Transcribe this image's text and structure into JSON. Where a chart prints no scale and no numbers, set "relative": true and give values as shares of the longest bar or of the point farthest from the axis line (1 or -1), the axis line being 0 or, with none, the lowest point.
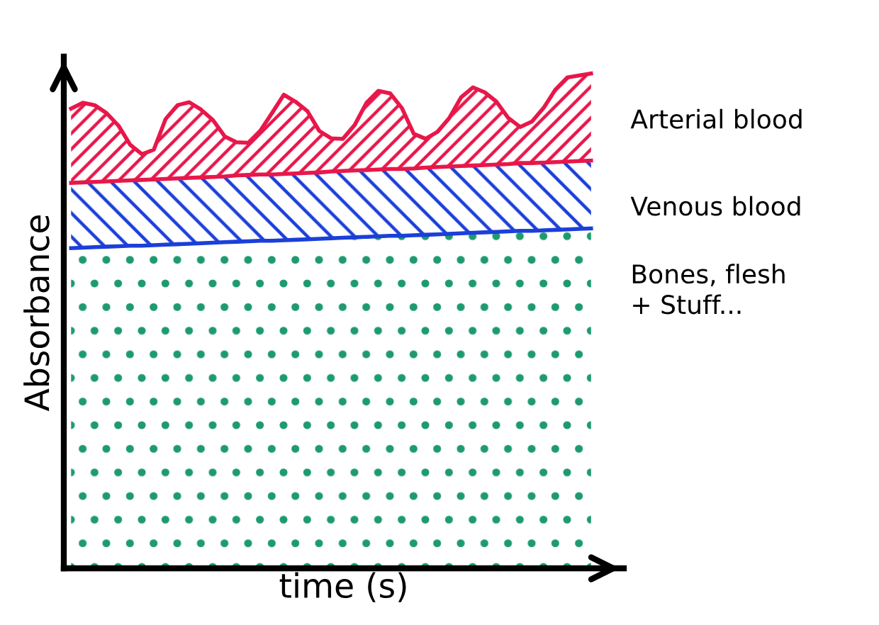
{
  "chart_data": {
    "type": "area",
    "stacked": true,
    "relative": true,
    "xlabel": "time (s)",
    "ylabel": "Absorbance",
    "categories": [
      null,
      null,
      null,
      null,
      null,
      null,
      null,
      null,
      null,
      null,
      null,
      null,
      null,
      null,
      null,
      null,
      null,
      null,
      null,
      null,
      null,
      null,
      null,
      null,
      null,
      null,
      null,
      null,
      null,
      null,
      null,
      null,
      null,
      null,
      null,
      null,
      null,
      null,
      null,
      null,
      null,
      null,
      null,
      null,
      null
    ],
    "series": [
      {
        "name": "Bones, flesh\n+ Stuff...",
        "color": "#1e9b6e",
        "values": [
          0.647,
          0.648,
          0.649,
          0.65,
          0.651,
          0.652,
          0.652,
          0.653,
          0.654,
          0.655,
          0.656,
          0.657,
          0.658,
          0.659,
          0.66,
          0.661,
          0.662,
          0.662,
          0.663,
          0.664,
          0.665,
          0.666,
          0.667,
          0.668,
          0.669,
          0.67,
          0.671,
          0.672,
          0.672,
          0.673,
          0.674,
          0.675,
          0.676,
          0.677,
          0.678,
          0.679,
          0.68,
          0.681,
          0.682,
          0.682,
          0.683,
          0.684,
          0.685,
          0.686,
          0.687
        ]
      },
      {
        "name": "Venous blood",
        "color": "#1b3fd8",
        "values": [
          0.132,
          0.132,
          0.132,
          0.132,
          0.132,
          0.132,
          0.133,
          0.133,
          0.133,
          0.133,
          0.133,
          0.133,
          0.133,
          0.133,
          0.134,
          0.134,
          0.134,
          0.134,
          0.134,
          0.134,
          0.134,
          0.134,
          0.135,
          0.135,
          0.135,
          0.135,
          0.135,
          0.135,
          0.135,
          0.135,
          0.136,
          0.136,
          0.136,
          0.136,
          0.136,
          0.136,
          0.136,
          0.136,
          0.137,
          0.137,
          0.137,
          0.137,
          0.137,
          0.137,
          0.137
        ]
      },
      {
        "name": "Arterial blood",
        "color": "#e8174a",
        "values": [
          0.15,
          0.161,
          0.155,
          0.138,
          0.112,
          0.072,
          0.052,
          0.06,
          0.121,
          0.148,
          0.153,
          0.137,
          0.115,
          0.081,
          0.067,
          0.065,
          0.088,
          0.124,
          0.16,
          0.145,
          0.125,
          0.084,
          0.067,
          0.065,
          0.092,
          0.136,
          0.159,
          0.153,
          0.123,
          0.07,
          0.058,
          0.071,
          0.098,
          0.139,
          0.158,
          0.147,
          0.127,
          0.093,
          0.073,
          0.084,
          0.111,
          0.147,
          0.17,
          0.173,
          0.176
        ]
      }
    ]
  }
}
